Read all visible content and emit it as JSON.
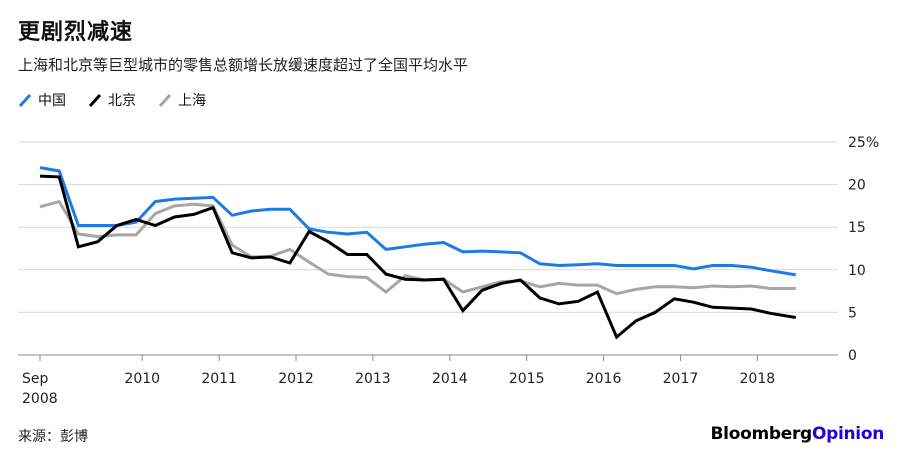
{
  "title": "更剧烈减速",
  "subtitle": "上海和北京等巨型城市的零售总额增长放缓速度超过了全国平均水平",
  "legend": {
    "china": "中国",
    "beijing": "北京",
    "shanghai": "上海"
  },
  "footer": {
    "source": "来源：彭博",
    "brand_bloomberg": "Bloomberg",
    "brand_opinion": "Opinion"
  },
  "colors": {
    "china": "#1e7be6",
    "beijing": "#000000",
    "shanghai": "#a6a6a6",
    "grid": "#d9d9d9",
    "brand_opinion": "#2800d7"
  },
  "chart_data": {
    "type": "line",
    "title": "更剧烈减速",
    "xlabel": "",
    "ylabel": "",
    "xlim": [
      2008.67,
      2018.75
    ],
    "ylim": [
      0,
      25
    ],
    "ytick_labels": [
      "25%",
      "20",
      "15",
      "10",
      "5",
      "0"
    ],
    "yticks": [
      25,
      20,
      15,
      10,
      5,
      0
    ],
    "xtick_labels": [
      "Sep\n2008",
      "2010",
      "2011",
      "2012",
      "2013",
      "2014",
      "2015",
      "2016",
      "2017",
      "2018"
    ],
    "xticks": [
      2008.67,
      2010,
      2011,
      2012,
      2013,
      2014,
      2015,
      2016,
      2017,
      2018
    ],
    "grid": true,
    "legend_position": "top-left",
    "series": [
      {
        "name": "中国",
        "x": [
          2008.67,
          2008.92,
          2009.17,
          2009.42,
          2009.67,
          2009.92,
          2010.17,
          2010.42,
          2010.67,
          2010.92,
          2011.17,
          2011.42,
          2011.67,
          2011.92,
          2012.17,
          2012.42,
          2012.67,
          2012.92,
          2013.17,
          2013.42,
          2013.67,
          2013.92,
          2014.17,
          2014.42,
          2014.67,
          2014.92,
          2015.17,
          2015.42,
          2015.67,
          2015.92,
          2016.17,
          2016.42,
          2016.67,
          2016.92,
          2017.17,
          2017.42,
          2017.67,
          2017.92,
          2018.17,
          2018.5
        ],
        "values": [
          22.0,
          21.6,
          15.2,
          15.2,
          15.2,
          15.6,
          18.0,
          18.3,
          18.4,
          18.5,
          16.4,
          16.9,
          17.1,
          17.1,
          14.8,
          14.4,
          14.2,
          14.4,
          12.4,
          12.7,
          13.0,
          13.2,
          12.1,
          12.2,
          12.1,
          12.0,
          10.7,
          10.5,
          10.6,
          10.7,
          10.5,
          10.5,
          10.5,
          10.5,
          10.1,
          10.5,
          10.5,
          10.3,
          9.9,
          9.4
        ]
      },
      {
        "name": "北京",
        "x": [
          2008.67,
          2008.92,
          2009.17,
          2009.42,
          2009.67,
          2009.92,
          2010.17,
          2010.42,
          2010.67,
          2010.92,
          2011.17,
          2011.42,
          2011.67,
          2011.92,
          2012.17,
          2012.42,
          2012.67,
          2012.92,
          2013.17,
          2013.42,
          2013.67,
          2013.92,
          2014.17,
          2014.42,
          2014.67,
          2014.92,
          2015.17,
          2015.42,
          2015.67,
          2015.92,
          2016.17,
          2016.42,
          2016.67,
          2016.92,
          2017.17,
          2017.42,
          2017.67,
          2017.92,
          2018.17,
          2018.5
        ],
        "values": [
          21.0,
          20.9,
          12.7,
          13.3,
          15.2,
          15.9,
          15.2,
          16.2,
          16.5,
          17.3,
          12.0,
          11.4,
          11.5,
          10.8,
          14.5,
          13.3,
          11.8,
          11.8,
          9.5,
          8.9,
          8.8,
          8.9,
          5.2,
          7.6,
          8.4,
          8.8,
          6.7,
          6.0,
          6.3,
          7.4,
          2.1,
          4.0,
          5.0,
          6.6,
          6.2,
          5.6,
          5.5,
          5.4,
          4.9,
          4.4
        ]
      },
      {
        "name": "上海",
        "x": [
          2008.67,
          2008.92,
          2009.17,
          2009.42,
          2009.67,
          2009.92,
          2010.17,
          2010.42,
          2010.67,
          2010.92,
          2011.17,
          2011.42,
          2011.67,
          2011.92,
          2012.17,
          2012.42,
          2012.67,
          2012.92,
          2013.17,
          2013.42,
          2013.67,
          2013.92,
          2014.17,
          2014.42,
          2014.67,
          2014.92,
          2015.17,
          2015.42,
          2015.67,
          2015.92,
          2016.17,
          2016.42,
          2016.67,
          2016.92,
          2017.17,
          2017.42,
          2017.67,
          2017.92,
          2018.17,
          2018.5
        ],
        "values": [
          17.4,
          18.0,
          14.2,
          13.9,
          14.1,
          14.1,
          16.6,
          17.5,
          17.7,
          17.5,
          12.9,
          11.5,
          11.6,
          12.4,
          10.9,
          9.5,
          9.2,
          9.1,
          7.4,
          9.3,
          8.8,
          8.9,
          7.4,
          8.0,
          8.6,
          8.7,
          8.0,
          8.4,
          8.2,
          8.2,
          7.2,
          7.7,
          8.0,
          8.0,
          7.9,
          8.1,
          8.0,
          8.1,
          7.8,
          7.8
        ]
      }
    ]
  }
}
